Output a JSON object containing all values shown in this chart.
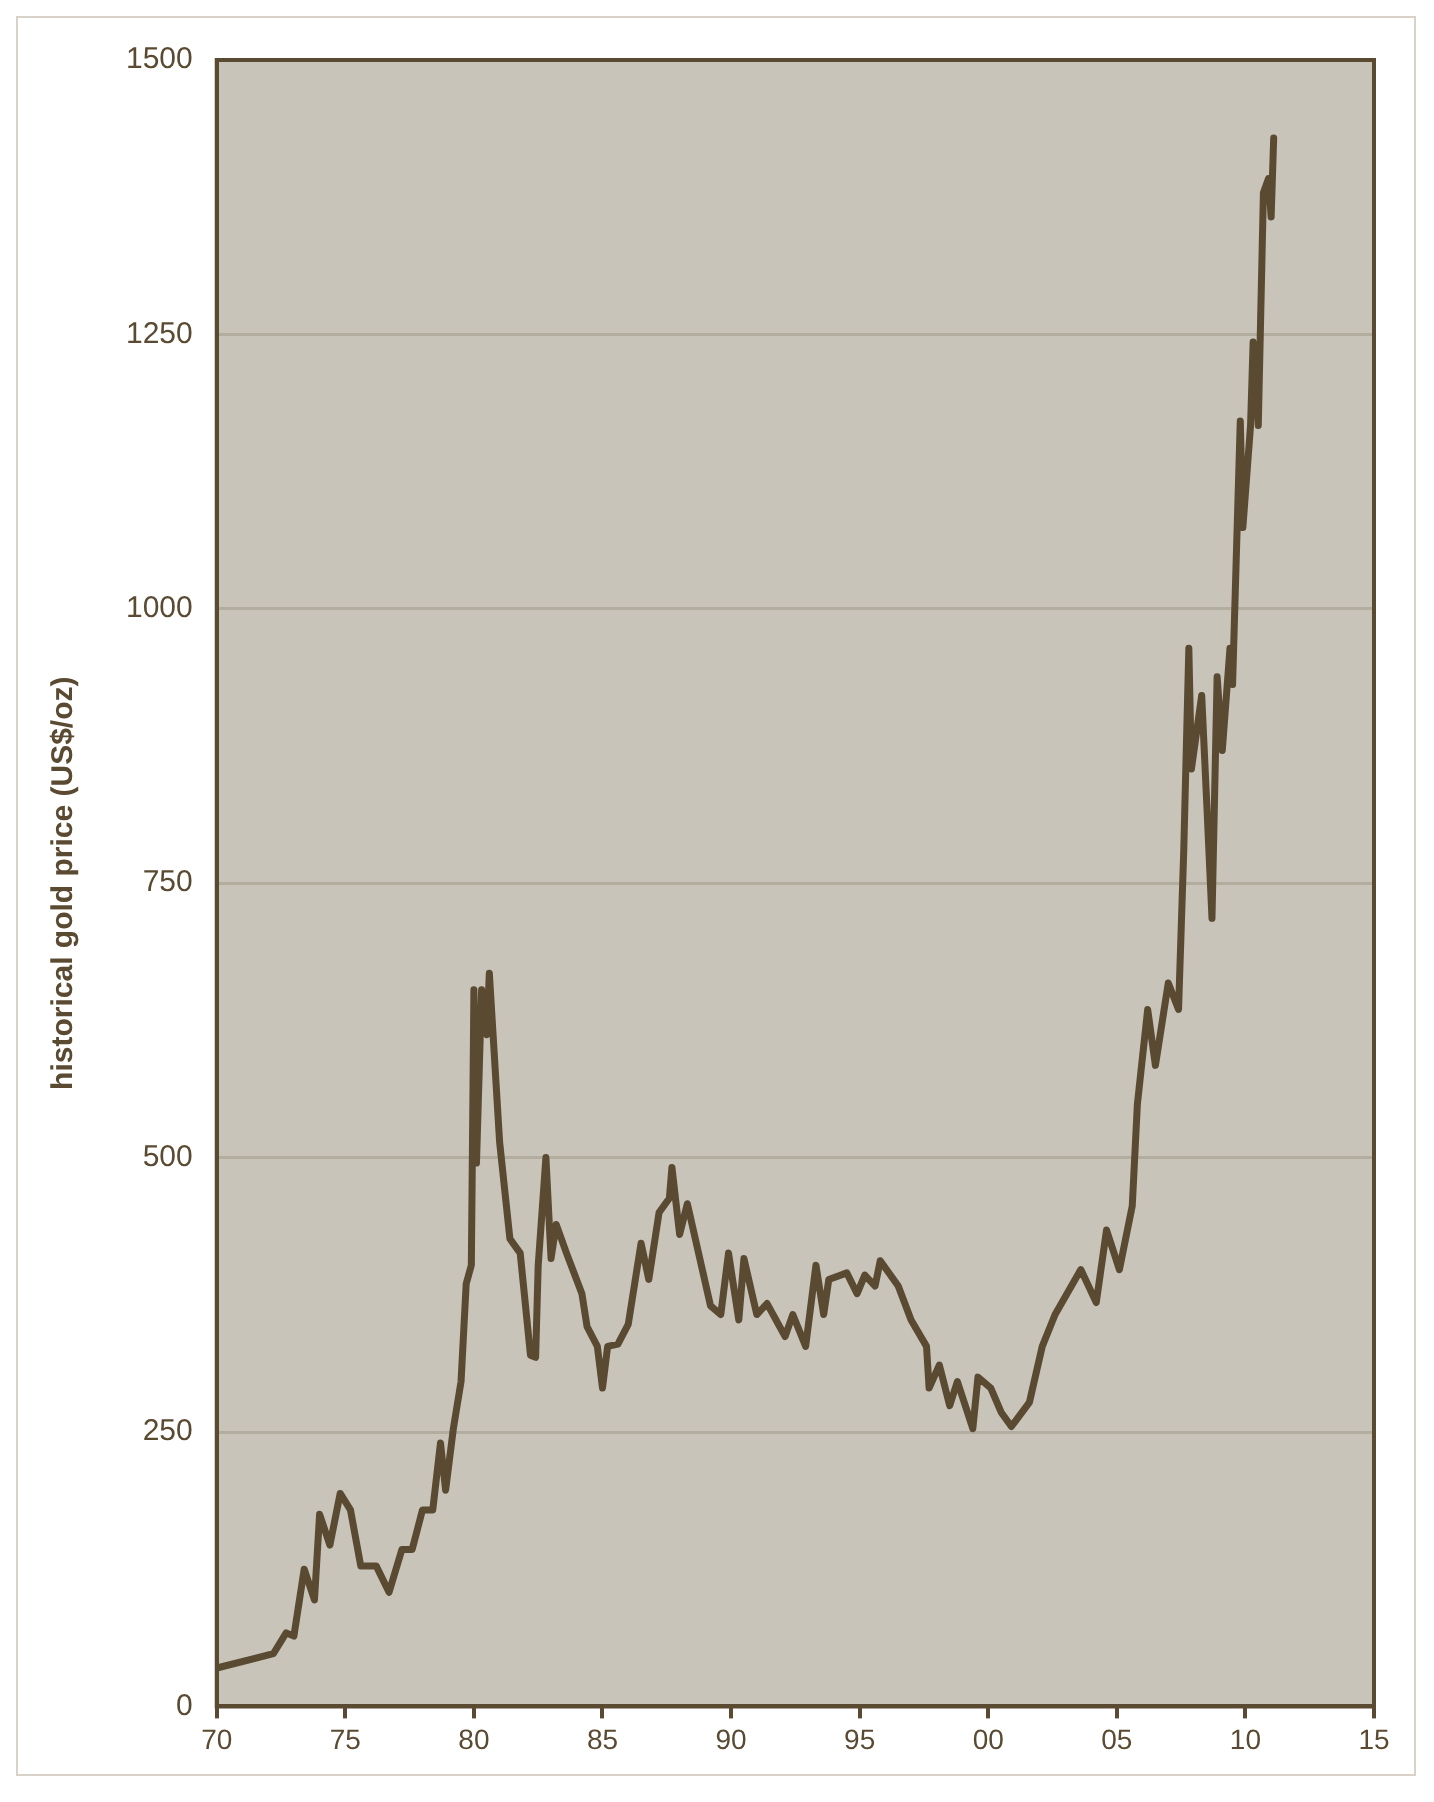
{
  "chart_data": {
    "type": "line",
    "ylabel": "historical gold price (US$/oz)",
    "xlim": [
      1970,
      2015
    ],
    "xticks": [
      {
        "value": 1970,
        "label": "70"
      },
      {
        "value": 1975,
        "label": "75"
      },
      {
        "value": 1980,
        "label": "80"
      },
      {
        "value": 1985,
        "label": "85"
      },
      {
        "value": 1990,
        "label": "90"
      },
      {
        "value": 1995,
        "label": "95"
      },
      {
        "value": 2000,
        "label": "00"
      },
      {
        "value": 2005,
        "label": "05"
      },
      {
        "value": 2010,
        "label": "10"
      },
      {
        "value": 2015,
        "label": "15"
      }
    ],
    "ylim": [
      0,
      1500
    ],
    "yticks": [
      0,
      250,
      500,
      750,
      1000,
      1250,
      1500
    ],
    "grid": "y",
    "legend": false,
    "marker": "none",
    "line_style": "solid",
    "series": [
      {
        "color": "#5a4a32",
        "x": [
          1970.0,
          1972.2,
          1972.7,
          1973.0,
          1973.4,
          1973.8,
          1974.0,
          1974.4,
          1974.8,
          1975.2,
          1975.6,
          1976.2,
          1976.7,
          1977.2,
          1977.6,
          1978.0,
          1978.4,
          1978.7,
          1978.9,
          1979.2,
          1979.5,
          1979.7,
          1979.9,
          1980.0,
          1980.1,
          1980.3,
          1980.5,
          1980.6,
          1981.0,
          1981.4,
          1981.8,
          1982.2,
          1982.4,
          1982.5,
          1982.8,
          1983.0,
          1983.2,
          1983.6,
          1984.2,
          1984.4,
          1984.8,
          1985.0,
          1985.2,
          1985.6,
          1986.0,
          1986.5,
          1986.8,
          1987.2,
          1987.6,
          1987.7,
          1988.0,
          1988.3,
          1989.2,
          1989.6,
          1989.9,
          1990.3,
          1990.5,
          1991.0,
          1991.4,
          1992.1,
          1992.4,
          1992.9,
          1993.3,
          1993.6,
          1993.8,
          1994.5,
          1994.9,
          1995.2,
          1995.6,
          1995.8,
          1996.5,
          1997.0,
          1997.6,
          1997.7,
          1998.1,
          1998.5,
          1998.8,
          1999.4,
          1999.6,
          2000.1,
          2000.5,
          2000.9,
          2001.6,
          2002.1,
          2002.6,
          2003.6,
          2004.2,
          2004.6,
          2005.1,
          2005.6,
          2005.8,
          2006.2,
          2006.5,
          2007.0,
          2007.4,
          2007.6,
          2007.8,
          2007.9,
          2008.3,
          2008.5,
          2008.7,
          2008.9,
          2009.1,
          2009.4,
          2009.5,
          2009.8,
          2009.9,
          2010.2,
          2010.3,
          2010.5,
          2010.7,
          2010.9,
          2011.0,
          2011.1
        ],
        "values": [
          35,
          48,
          67,
          64,
          125,
          97,
          175,
          147,
          194,
          179,
          128,
          128,
          104,
          143,
          143,
          179,
          179,
          240,
          197,
          253,
          296,
          385,
          402,
          653,
          495,
          653,
          612,
          668,
          514,
          426,
          413,
          320,
          318,
          402,
          500,
          408,
          439,
          413,
          376,
          346,
          328,
          290,
          328,
          330,
          348,
          422,
          389,
          450,
          463,
          491,
          430,
          458,
          365,
          357,
          413,
          352,
          408,
          357,
          367,
          337,
          357,
          328,
          402,
          357,
          389,
          395,
          376,
          393,
          383,
          406,
          383,
          352,
          328,
          290,
          311,
          274,
          296,
          253,
          300,
          290,
          268,
          255,
          277,
          328,
          357,
          398,
          368,
          434,
          398,
          456,
          549,
          635,
          584,
          659,
          635,
          778,
          964,
          854,
          921,
          821,
          718,
          938,
          871,
          964,
          931,
          1171,
          1074,
          1167,
          1243,
          1167,
          1379,
          1392,
          1357,
          1429
        ]
      }
    ]
  }
}
